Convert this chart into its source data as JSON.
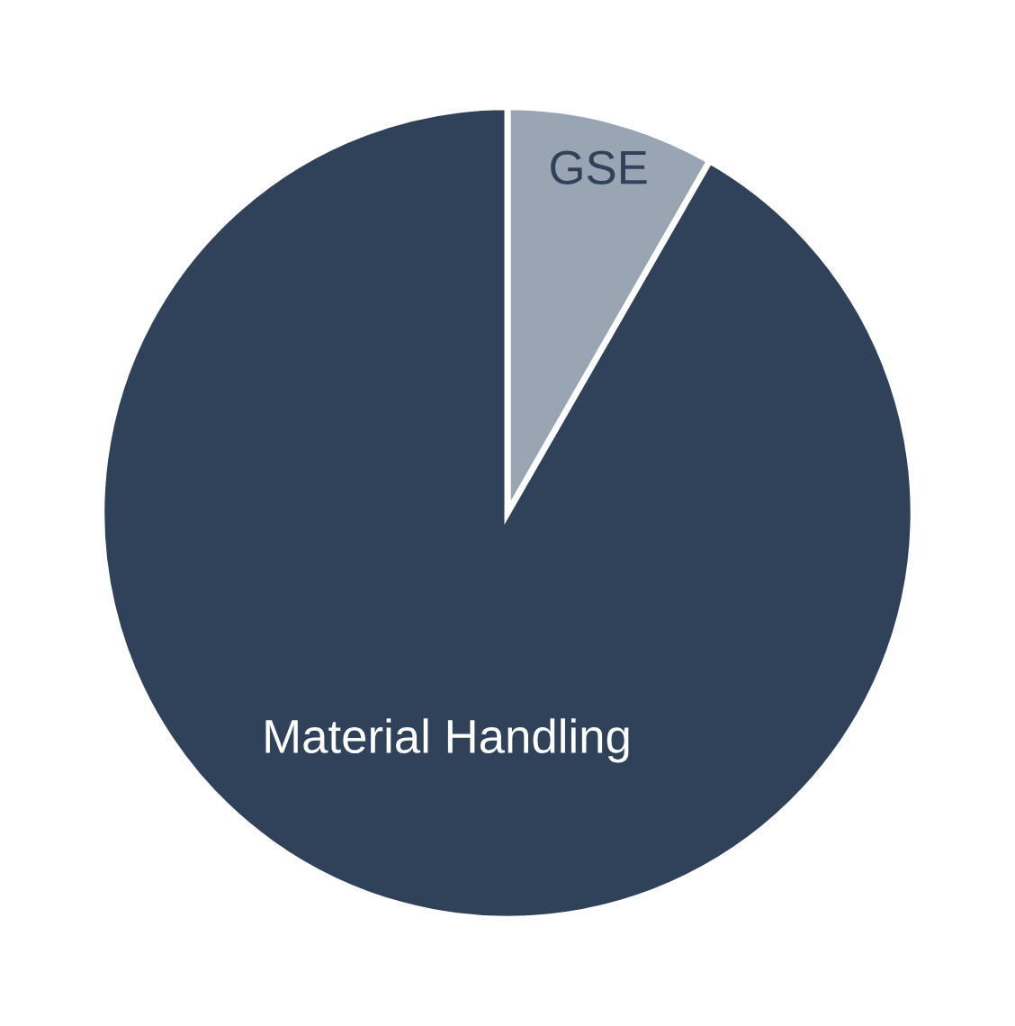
{
  "chart_data": {
    "type": "pie",
    "categories": [
      "GSE",
      "Material Handling"
    ],
    "values": [
      8.3,
      91.7
    ],
    "colors": [
      "#9aa5b4",
      "#30415a"
    ]
  }
}
